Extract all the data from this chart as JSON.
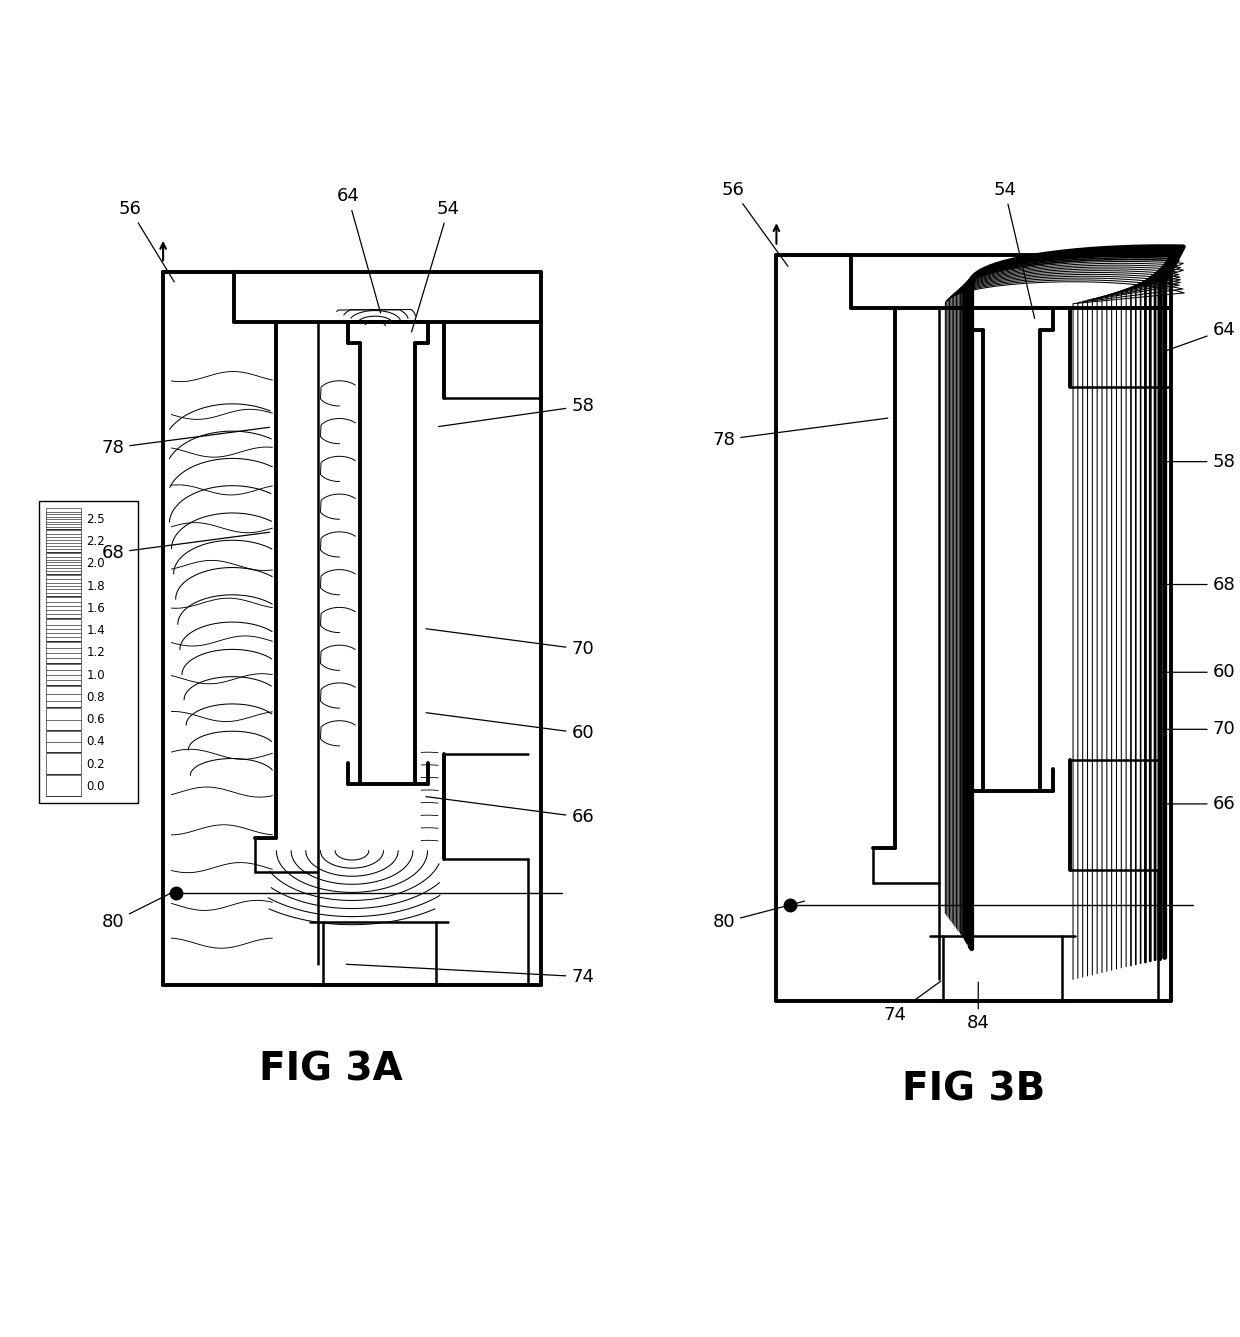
{
  "fig_width": 12.4,
  "fig_height": 13.37,
  "bg_color": "#ffffff",
  "lc": "#000000",
  "lw_thin": 1.0,
  "lw_med": 1.8,
  "lw_thick": 2.8,
  "lw_vthick": 5.0,
  "fs_label": 13,
  "fs_title": 28,
  "fig3a_title": "FIG 3A",
  "fig3b_title": "FIG 3B",
  "legend_values": [
    "2.5",
    "2.2",
    "2.0",
    "1.8",
    "1.6",
    "1.4",
    "1.2",
    "1.0",
    "0.8",
    "0.6",
    "0.4",
    "0.2",
    "0.0"
  ]
}
